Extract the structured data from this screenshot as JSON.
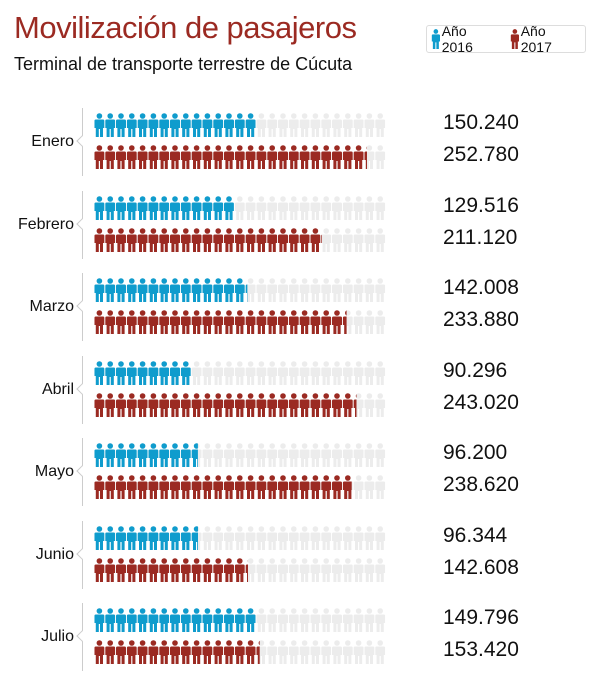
{
  "title": "Movilización de pasajeros",
  "subtitle": "Terminal de transporte terrestre de Cúcuta",
  "legend": [
    {
      "label": "Año 2016",
      "color": "#0f9ccd"
    },
    {
      "label": "Año 2017",
      "color": "#9b2a22"
    }
  ],
  "chart_data": {
    "type": "pictogram-bar",
    "unit_per_icon": 10000,
    "icons_per_row": 27,
    "empty_color": "#ececec",
    "categories": [
      "Enero",
      "Febrero",
      "Marzo",
      "Abril",
      "Mayo",
      "Junio",
      "Julio"
    ],
    "series": [
      {
        "name": "Año 2016",
        "color": "#0f9ccd",
        "values": [
          150240,
          129516,
          142008,
          90296,
          96200,
          96344,
          149796
        ],
        "labels": [
          "150.240",
          "129.516",
          "142.008",
          "90.296",
          "96.200",
          "96.344",
          "149.796"
        ]
      },
      {
        "name": "Año 2017",
        "color": "#9b2a22",
        "values": [
          252780,
          211120,
          233880,
          243020,
          238620,
          142608,
          153420
        ],
        "labels": [
          "252.780",
          "211.120",
          "233.880",
          "243.020",
          "238.620",
          "142.608",
          "153.420"
        ]
      }
    ]
  }
}
